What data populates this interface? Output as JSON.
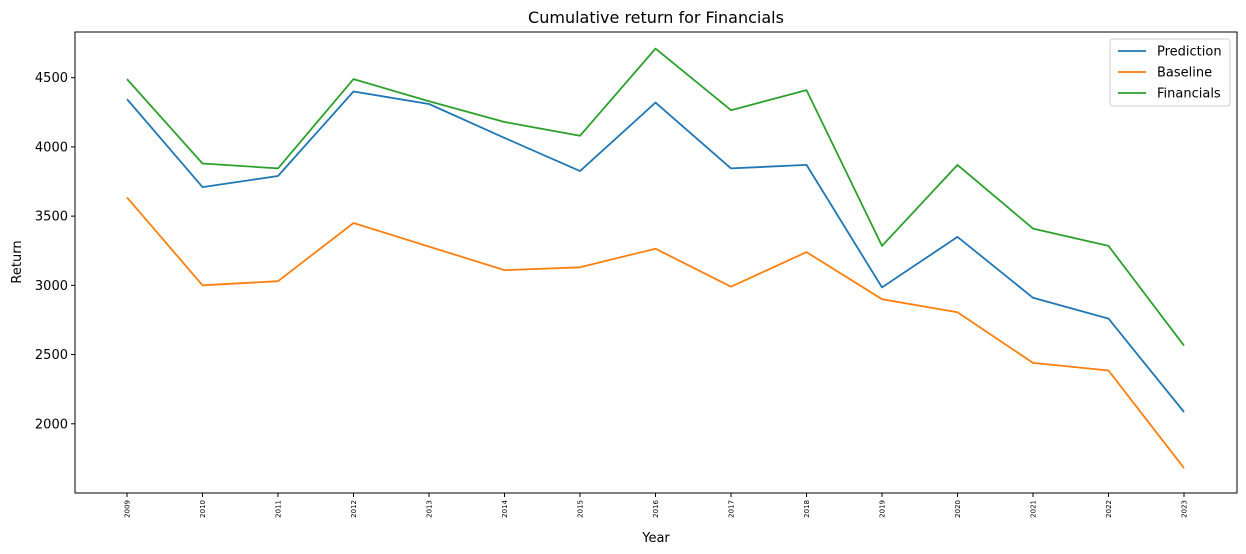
{
  "chart_data": {
    "type": "line",
    "title": "Cumulative return for Financials",
    "xlabel": "Year",
    "ylabel": "Return",
    "categories": [
      "2009",
      "2010",
      "2011",
      "2012",
      "2013",
      "2014",
      "2015",
      "2016",
      "2017",
      "2018",
      "2019",
      "2020",
      "2021",
      "2022",
      "2023"
    ],
    "ylim": [
      1500,
      4830
    ],
    "yticks": [
      2000,
      2500,
      3000,
      3500,
      4000,
      4500
    ],
    "grid": false,
    "legend_position": "top-right",
    "series": [
      {
        "name": "Prediction",
        "color": "#1f77b4",
        "values": [
          4345,
          3710,
          3790,
          4400,
          4310,
          4065,
          3825,
          4320,
          3845,
          3870,
          2985,
          3350,
          2910,
          2760,
          2085
        ]
      },
      {
        "name": "Baseline",
        "color": "#ff7f0e",
        "values": [
          3635,
          3000,
          3030,
          3450,
          3280,
          3110,
          3130,
          3265,
          2990,
          3240,
          2900,
          2805,
          2440,
          2385,
          1680
        ]
      },
      {
        "name": "Financials",
        "color": "#2ca02c",
        "values": [
          4490,
          3880,
          3845,
          4490,
          4330,
          4180,
          4080,
          4710,
          4265,
          4410,
          3285,
          3870,
          3410,
          3285,
          2565
        ]
      }
    ]
  }
}
